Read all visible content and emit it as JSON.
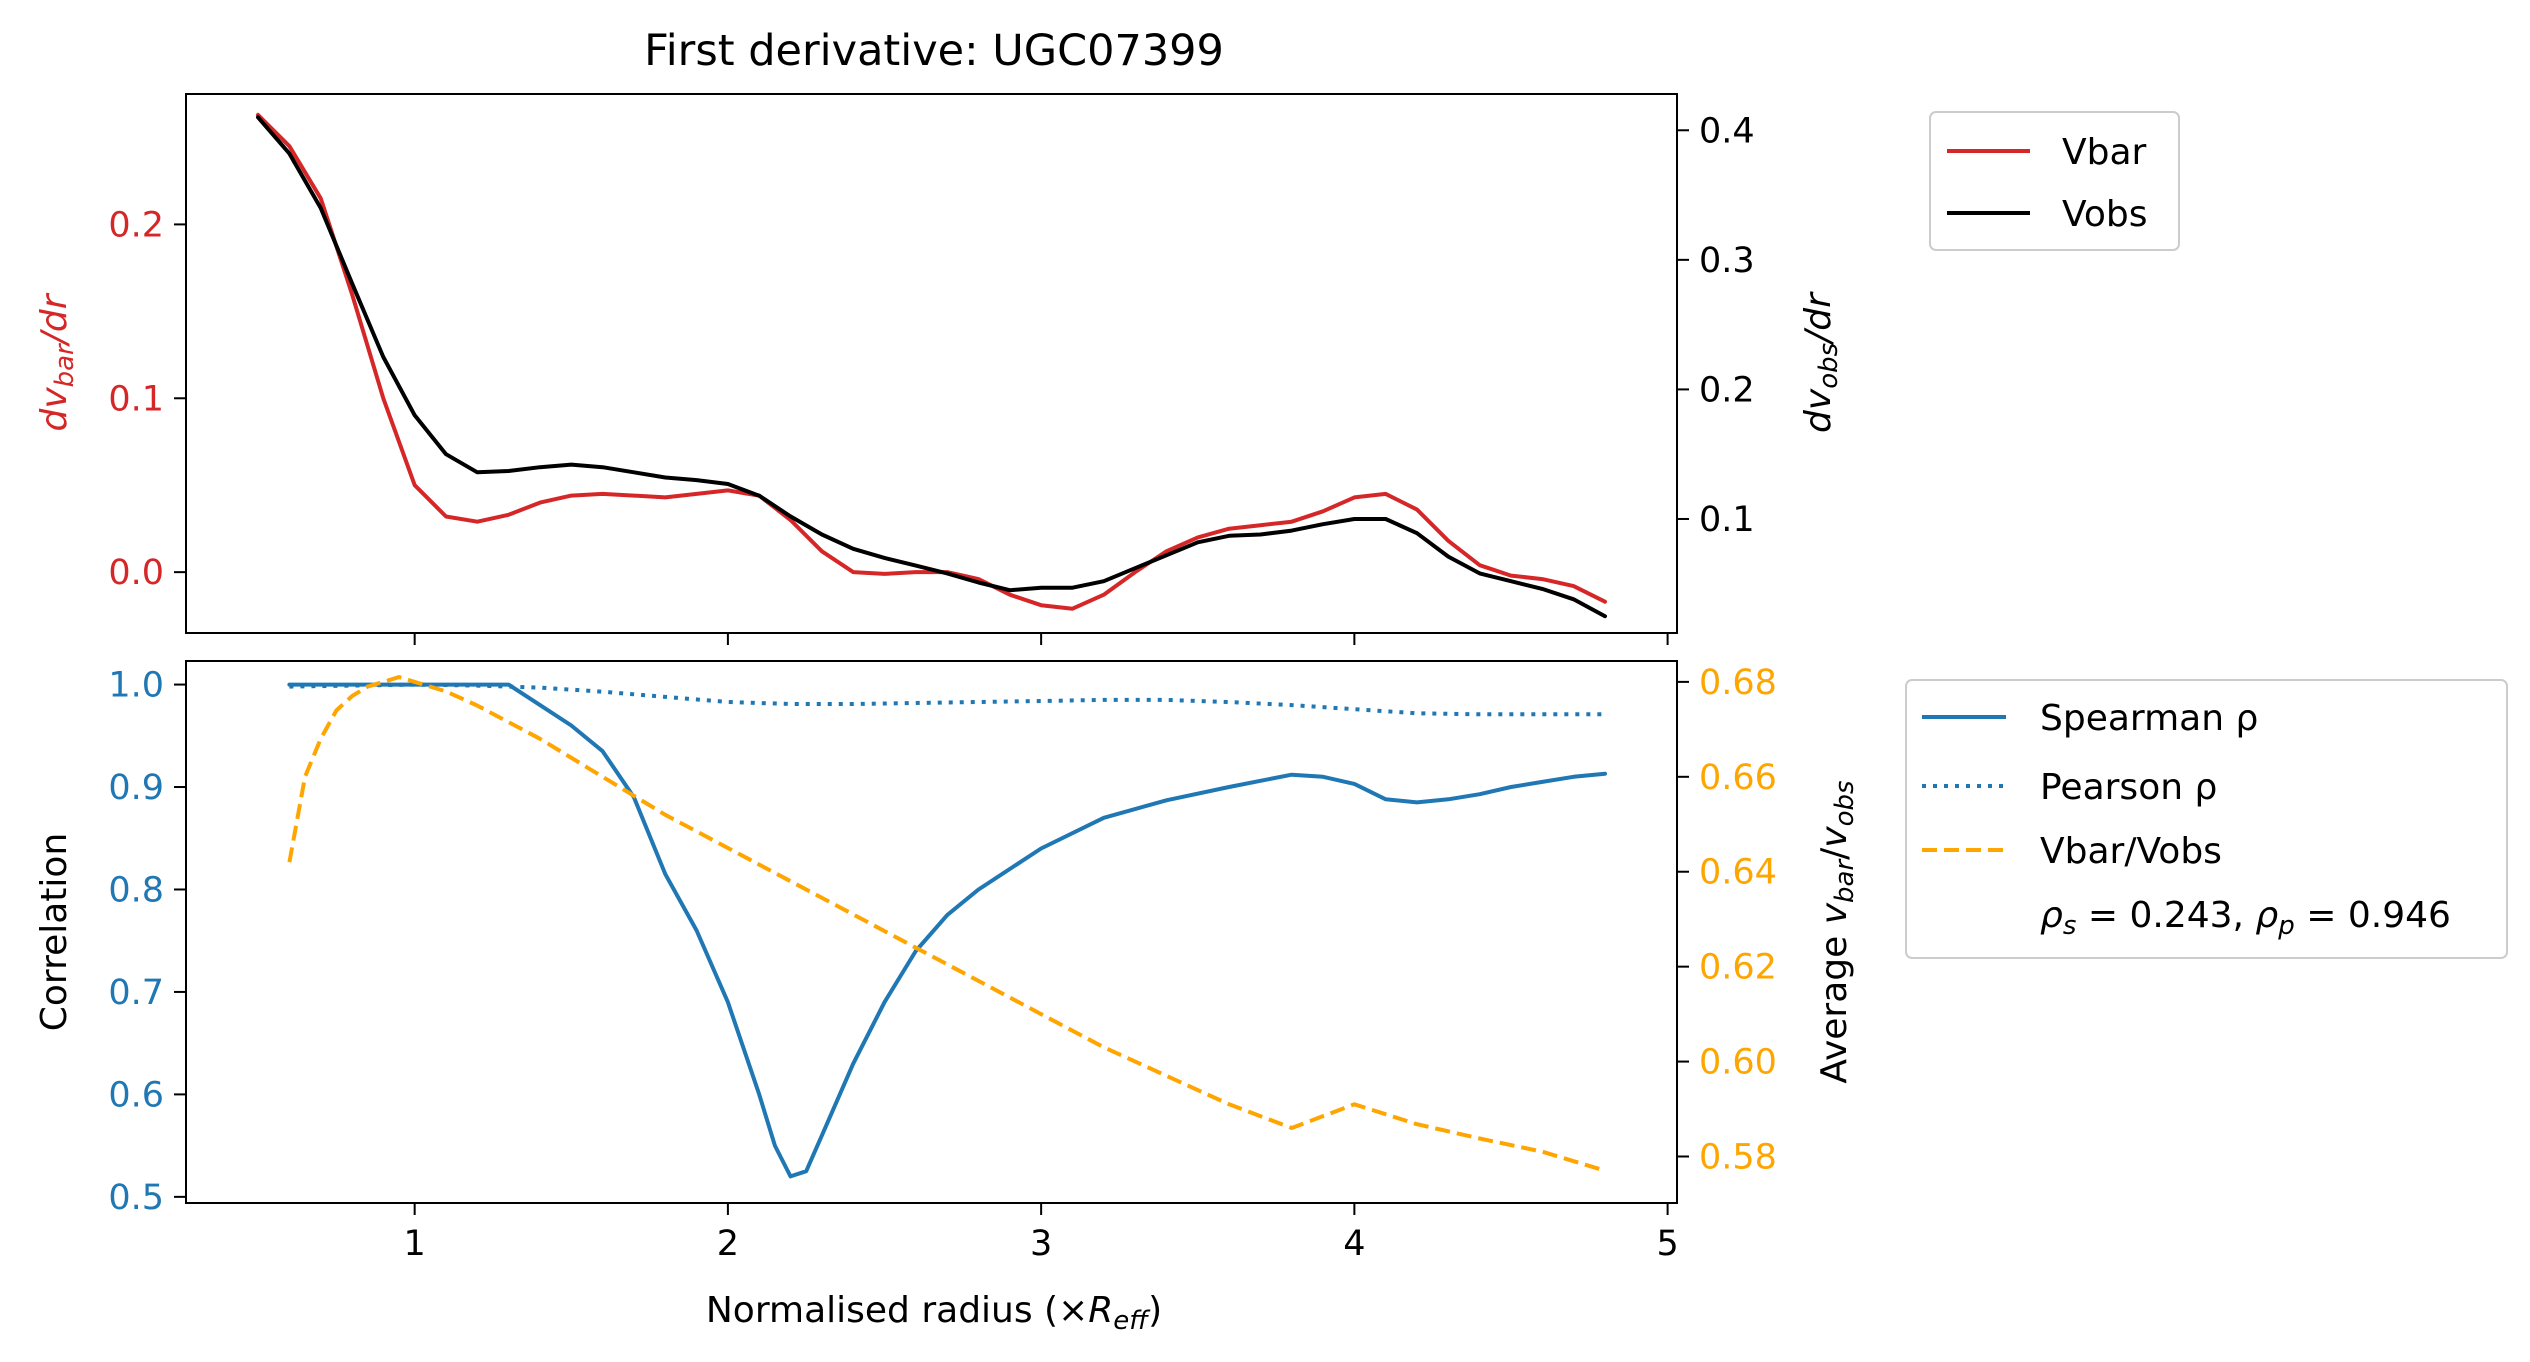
{
  "figure": {
    "title": "First derivative: UGC07399"
  },
  "colors": {
    "vbar": "#d62728",
    "vobs": "#000000",
    "spearman": "#1f77b4",
    "pearson": "#1f77b4",
    "ratio": "#ffa500"
  },
  "chart_data": [
    {
      "type": "line",
      "title": "First derivative: UGC07399",
      "xlim": [
        0.27,
        5.03
      ],
      "x_ticks": [
        1,
        2,
        3,
        4,
        5
      ],
      "left_axis": {
        "label_parts": [
          "dv",
          "bar",
          "/dr"
        ],
        "ylim": [
          -0.035,
          0.275
        ],
        "ticks": [
          0.0,
          0.1,
          0.2
        ],
        "tick_labels": [
          "0.0",
          "0.1",
          "0.2"
        ]
      },
      "right_axis": {
        "label_parts": [
          "dv",
          "obs",
          "/dr"
        ],
        "ylim": [
          0.012,
          0.428
        ],
        "ticks": [
          0.1,
          0.2,
          0.3,
          0.4
        ],
        "tick_labels": [
          "0.1",
          "0.2",
          "0.3",
          "0.4"
        ]
      },
      "legend": {
        "placement": "outside-upper-right",
        "entries": [
          "Vbar",
          "Vobs"
        ]
      },
      "series": [
        {
          "name": "Vbar",
          "axis": "left",
          "x": [
            0.5,
            0.6,
            0.7,
            0.8,
            0.9,
            1.0,
            1.1,
            1.2,
            1.3,
            1.4,
            1.5,
            1.6,
            1.7,
            1.8,
            1.9,
            2.0,
            2.1,
            2.2,
            2.3,
            2.4,
            2.5,
            2.6,
            2.7,
            2.8,
            2.9,
            3.0,
            3.1,
            3.2,
            3.3,
            3.4,
            3.5,
            3.6,
            3.7,
            3.8,
            3.9,
            4.0,
            4.1,
            4.2,
            4.3,
            4.4,
            4.5,
            4.6,
            4.7,
            4.8
          ],
          "y": [
            0.263,
            0.245,
            0.215,
            0.16,
            0.1,
            0.05,
            0.032,
            0.029,
            0.033,
            0.04,
            0.044,
            0.045,
            0.044,
            0.043,
            0.045,
            0.047,
            0.044,
            0.03,
            0.012,
            0.0,
            -0.001,
            0.0,
            0.0,
            -0.004,
            -0.013,
            -0.019,
            -0.021,
            -0.013,
            0.0,
            0.012,
            0.02,
            0.025,
            0.027,
            0.029,
            0.035,
            0.043,
            0.045,
            0.036,
            0.018,
            0.004,
            -0.002,
            -0.004,
            -0.008,
            -0.017
          ]
        },
        {
          "name": "Vobs",
          "axis": "right",
          "x": [
            0.5,
            0.6,
            0.7,
            0.8,
            0.9,
            1.0,
            1.1,
            1.2,
            1.3,
            1.4,
            1.5,
            1.6,
            1.7,
            1.8,
            1.9,
            2.0,
            2.1,
            2.2,
            2.3,
            2.4,
            2.5,
            2.6,
            2.7,
            2.8,
            2.9,
            3.0,
            3.1,
            3.2,
            3.3,
            3.4,
            3.5,
            3.6,
            3.7,
            3.8,
            3.9,
            4.0,
            4.1,
            4.2,
            4.3,
            4.4,
            4.5,
            4.6,
            4.7,
            4.8
          ],
          "y": [
            0.41,
            0.382,
            0.34,
            0.282,
            0.225,
            0.18,
            0.15,
            0.136,
            0.137,
            0.14,
            0.142,
            0.14,
            0.136,
            0.132,
            0.13,
            0.127,
            0.118,
            0.102,
            0.088,
            0.077,
            0.07,
            0.064,
            0.058,
            0.051,
            0.045,
            0.047,
            0.047,
            0.052,
            0.062,
            0.072,
            0.082,
            0.087,
            0.088,
            0.091,
            0.096,
            0.1,
            0.1,
            0.089,
            0.071,
            0.058,
            0.052,
            0.046,
            0.038,
            0.025
          ]
        }
      ]
    },
    {
      "type": "line",
      "xlabel_parts": [
        "Normalised radius (×",
        "R",
        "eff",
        ")"
      ],
      "xlim": [
        0.27,
        5.03
      ],
      "x_ticks": [
        1,
        2,
        3,
        4,
        5
      ],
      "x_tick_labels": [
        "1",
        "2",
        "3",
        "4",
        "5"
      ],
      "left_axis": {
        "label": "Correlation",
        "ylim": [
          0.494,
          1.023
        ],
        "ticks": [
          0.5,
          0.6,
          0.7,
          0.8,
          0.9,
          1.0
        ],
        "tick_labels": [
          "0.5",
          "0.6",
          "0.7",
          "0.8",
          "0.9",
          "1.0"
        ]
      },
      "right_axis": {
        "label_parts": [
          "Average ",
          "v",
          "bar",
          "/",
          "v",
          "obs"
        ],
        "ylim": [
          0.5702,
          0.6844
        ],
        "ticks": [
          0.58,
          0.6,
          0.62,
          0.64,
          0.66,
          0.68
        ],
        "tick_labels": [
          "0.58",
          "0.60",
          "0.62",
          "0.64",
          "0.66",
          "0.68"
        ]
      },
      "legend": {
        "placement": "outside-upper-right",
        "entries": [
          "Spearman ρ",
          "Pearson ρ",
          "Vbar/Vobs"
        ],
        "stats": {
          "rho_s": "0.243",
          "rho_p": "0.946"
        }
      },
      "series": [
        {
          "name": "Spearman ρ",
          "axis": "left",
          "style": "solid",
          "x": [
            0.6,
            0.8,
            1.0,
            1.2,
            1.3,
            1.4,
            1.5,
            1.6,
            1.7,
            1.8,
            1.9,
            2.0,
            2.1,
            2.15,
            2.2,
            2.25,
            2.3,
            2.4,
            2.5,
            2.6,
            2.7,
            2.8,
            3.0,
            3.2,
            3.4,
            3.6,
            3.8,
            3.9,
            4.0,
            4.1,
            4.2,
            4.3,
            4.4,
            4.5,
            4.6,
            4.7,
            4.8
          ],
          "y": [
            1.0,
            1.0,
            1.0,
            1.0,
            1.0,
            0.98,
            0.96,
            0.935,
            0.89,
            0.815,
            0.76,
            0.69,
            0.6,
            0.55,
            0.52,
            0.525,
            0.56,
            0.63,
            0.69,
            0.74,
            0.775,
            0.8,
            0.84,
            0.87,
            0.887,
            0.9,
            0.912,
            0.91,
            0.903,
            0.888,
            0.885,
            0.888,
            0.893,
            0.9,
            0.905,
            0.91,
            0.913
          ]
        },
        {
          "name": "Pearson ρ",
          "axis": "left",
          "style": "dotted",
          "x": [
            0.6,
            0.8,
            1.0,
            1.2,
            1.4,
            1.6,
            1.8,
            2.0,
            2.2,
            2.4,
            2.6,
            2.8,
            3.0,
            3.2,
            3.4,
            3.6,
            3.8,
            4.0,
            4.2,
            4.4,
            4.6,
            4.8
          ],
          "y": [
            0.998,
            0.999,
            1.0,
            0.999,
            0.997,
            0.993,
            0.988,
            0.983,
            0.981,
            0.981,
            0.982,
            0.983,
            0.984,
            0.985,
            0.985,
            0.983,
            0.98,
            0.976,
            0.972,
            0.971,
            0.971,
            0.971
          ]
        },
        {
          "name": "Vbar/Vobs",
          "axis": "right",
          "style": "dashed",
          "x": [
            0.6,
            0.65,
            0.7,
            0.75,
            0.8,
            0.85,
            0.9,
            0.95,
            1.0,
            1.1,
            1.2,
            1.4,
            1.6,
            1.8,
            2.0,
            2.2,
            2.4,
            2.6,
            2.8,
            3.0,
            3.2,
            3.4,
            3.6,
            3.8,
            4.0,
            4.2,
            4.4,
            4.6,
            4.8
          ],
          "y": [
            0.642,
            0.66,
            0.668,
            0.674,
            0.677,
            0.679,
            0.68,
            0.681,
            0.68,
            0.678,
            0.675,
            0.668,
            0.66,
            0.652,
            0.645,
            0.638,
            0.631,
            0.624,
            0.617,
            0.61,
            0.603,
            0.597,
            0.591,
            0.586,
            0.591,
            0.5868,
            0.5838,
            0.581,
            0.577
          ]
        }
      ]
    }
  ]
}
